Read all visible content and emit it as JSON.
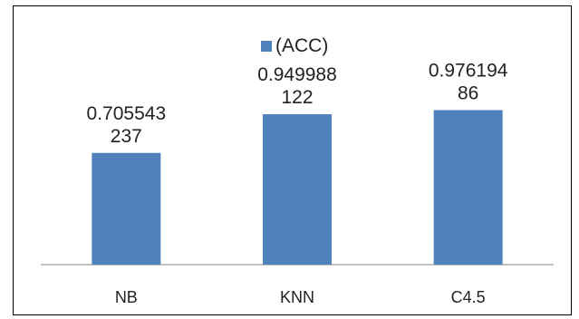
{
  "chart_data": {
    "type": "bar",
    "title": "",
    "xlabel": "",
    "ylabel": "",
    "categories": [
      "NB",
      "KNN",
      "C4.5"
    ],
    "series": [
      {
        "name": "(ACC)",
        "values": [
          0.705543237,
          0.949988122,
          0.97619486
        ],
        "data_labels": [
          [
            "0.705543",
            "237"
          ],
          [
            "0.949988",
            "122"
          ],
          [
            "0.976194",
            "86"
          ]
        ]
      }
    ],
    "ylim": [
      0,
      1.5
    ],
    "grid": false,
    "legend_position": "top",
    "colors": {
      "bar": "#4f81bd",
      "axis": "#808080",
      "text": "#222222",
      "frame": "#000000"
    }
  }
}
